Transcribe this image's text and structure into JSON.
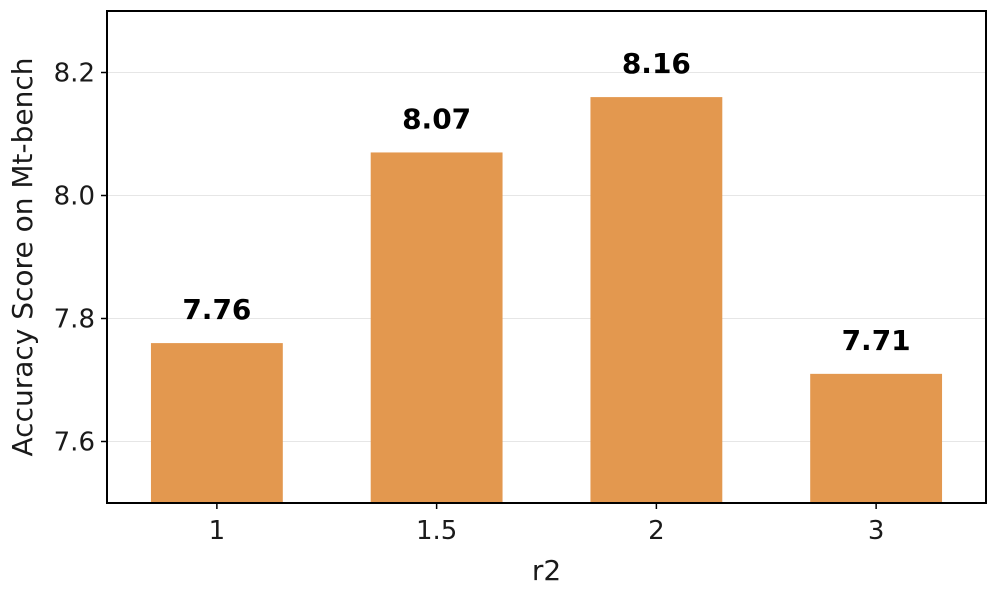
{
  "chart_data": {
    "type": "bar",
    "categories": [
      "1",
      "1.5",
      "2",
      "3"
    ],
    "values": [
      7.76,
      8.07,
      8.16,
      7.71
    ],
    "data_labels": [
      "7.76",
      "8.07",
      "8.16",
      "7.71"
    ],
    "title": "",
    "xlabel": "r2",
    "ylabel": "Accuracy Score on Mt-bench",
    "ylim": [
      7.5,
      8.3
    ],
    "yticks": [
      7.6,
      7.8,
      8.0,
      8.2
    ],
    "ytick_labels": [
      "7.6",
      "7.8",
      "8.0",
      "8.2"
    ],
    "grid": "horizontal",
    "bar_color": "#e3984f",
    "legend": "none"
  }
}
